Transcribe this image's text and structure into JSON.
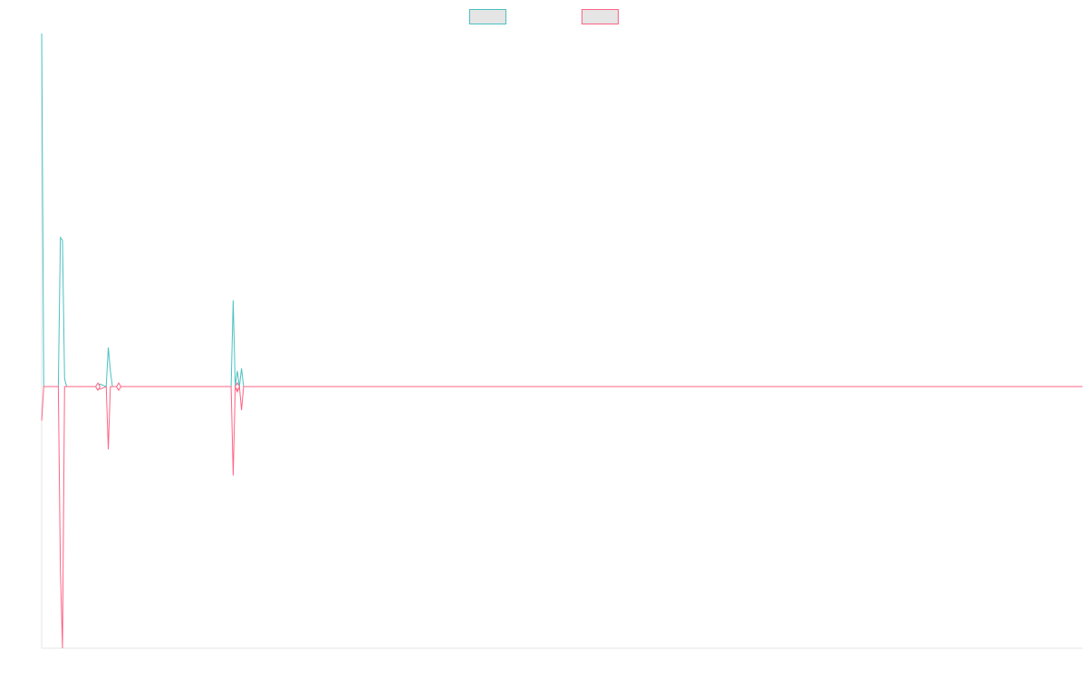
{
  "chart_data": {
    "type": "line",
    "title": "",
    "xlabel": "",
    "ylabel": "",
    "xlim": [
      0,
      500
    ],
    "ylim": [
      -1,
      1.35
    ],
    "grid": false,
    "legend_position": "top-center",
    "series": [
      {
        "name": "",
        "color": "#4bc0c0",
        "values": [
          [
            0,
            1.35
          ],
          [
            1,
            0
          ],
          [
            8,
            0
          ],
          [
            9,
            0.57
          ],
          [
            10,
            0.56
          ],
          [
            11,
            0.03
          ],
          [
            12,
            0
          ],
          [
            27,
            0
          ],
          [
            28,
            0.01
          ],
          [
            31,
            0
          ],
          [
            32,
            0.15
          ],
          [
            33,
            0.06
          ],
          [
            34,
            0
          ],
          [
            37,
            0
          ],
          [
            38,
            0
          ],
          [
            91,
            0
          ],
          [
            92,
            0.33
          ],
          [
            93,
            0
          ],
          [
            94,
            0.06
          ],
          [
            95,
            0
          ],
          [
            96,
            0.07
          ],
          [
            97,
            0
          ],
          [
            500,
            0
          ]
        ]
      },
      {
        "name": "",
        "color": "#ff6384",
        "values": [
          [
            0,
            -0.13
          ],
          [
            1,
            0
          ],
          [
            8,
            0
          ],
          [
            9,
            -0.7
          ],
          [
            10,
            -1.0
          ],
          [
            11,
            0
          ],
          [
            12,
            0
          ],
          [
            27,
            0
          ],
          [
            28,
            -0.01
          ],
          [
            31,
            0
          ],
          [
            32,
            -0.24
          ],
          [
            33,
            0
          ],
          [
            34,
            0
          ],
          [
            37,
            0
          ],
          [
            38,
            0
          ],
          [
            91,
            0
          ],
          [
            92,
            -0.34
          ],
          [
            93,
            0
          ],
          [
            94,
            -0.02
          ],
          [
            95,
            0
          ],
          [
            96,
            -0.09
          ],
          [
            97,
            0
          ],
          [
            500,
            0
          ]
        ]
      }
    ],
    "point_markers": [
      {
        "x": 27,
        "y": 0
      },
      {
        "x": 37,
        "y": 0
      },
      {
        "x": 94,
        "y": 0
      }
    ]
  }
}
